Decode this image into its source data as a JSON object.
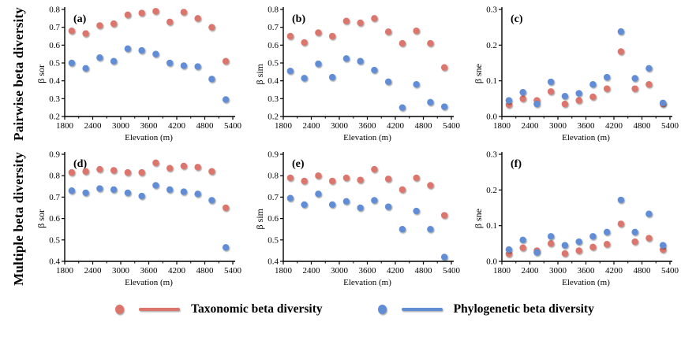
{
  "figure": {
    "background": "#ffffff"
  },
  "row_labels": [
    "Pairwise beta diversity",
    "Multiple beta diversity"
  ],
  "legend": {
    "items": [
      {
        "label": "Taxonomic beta diversity",
        "color": "#dc746c",
        "marker": "dot-and-line"
      },
      {
        "label": "Phylogenetic beta diversity",
        "color": "#608dd5",
        "marker": "dot-and-line"
      }
    ]
  },
  "chart_data": [
    {
      "id": "a",
      "type": "scatter",
      "label": "(a)",
      "row": "Pairwise beta diversity",
      "xlabel": "Elevation (m)",
      "ylabel": "β sor",
      "xlim": [
        1800,
        5400
      ],
      "ylim": [
        0.2,
        0.8
      ],
      "xticks": [
        1800,
        2400,
        3000,
        3600,
        4200,
        4800,
        5400
      ],
      "yticks": [
        0.2,
        0.3,
        0.4,
        0.5,
        0.6,
        0.7,
        0.8
      ],
      "fit": "quadratic",
      "line_style": "solid",
      "grid": false,
      "curve_x_range": [
        1890,
        5280
      ],
      "x": [
        1950,
        2250,
        2550,
        2850,
        3150,
        3450,
        3750,
        4050,
        4350,
        4650,
        4950,
        5250
      ],
      "series": [
        {
          "name": "Taxonomic beta diversity",
          "color": "#dc746c",
          "values": [
            0.68,
            0.665,
            0.71,
            0.72,
            0.77,
            0.78,
            0.79,
            0.73,
            0.785,
            0.75,
            0.7,
            0.51
          ]
        },
        {
          "name": "Phylogenetic beta diversity",
          "color": "#608dd5",
          "values": [
            0.5,
            0.47,
            0.53,
            0.51,
            0.58,
            0.57,
            0.55,
            0.5,
            0.485,
            0.48,
            0.41,
            0.295
          ]
        }
      ]
    },
    {
      "id": "b",
      "type": "scatter",
      "label": "(b)",
      "row": "Pairwise beta diversity",
      "xlabel": "Elevation (m)",
      "ylabel": "β sim",
      "xlim": [
        1800,
        5400
      ],
      "ylim": [
        0.2,
        0.8
      ],
      "xticks": [
        1800,
        2400,
        3000,
        3600,
        4200,
        4800,
        5400
      ],
      "yticks": [
        0.2,
        0.3,
        0.4,
        0.5,
        0.6,
        0.7,
        0.8
      ],
      "fit": "quadratic",
      "line_style": "solid",
      "grid": false,
      "curve_x_range": [
        1890,
        5280
      ],
      "x": [
        1950,
        2250,
        2550,
        2850,
        3150,
        3450,
        3750,
        4050,
        4350,
        4650,
        4950,
        5250
      ],
      "series": [
        {
          "name": "Taxonomic beta diversity",
          "color": "#dc746c",
          "values": [
            0.65,
            0.615,
            0.67,
            0.65,
            0.735,
            0.725,
            0.75,
            0.675,
            0.61,
            0.68,
            0.61,
            0.475
          ]
        },
        {
          "name": "Phylogenetic beta diversity",
          "color": "#608dd5",
          "values": [
            0.455,
            0.415,
            0.495,
            0.42,
            0.525,
            0.51,
            0.46,
            0.395,
            0.25,
            0.38,
            0.28,
            0.255
          ]
        }
      ]
    },
    {
      "id": "c",
      "type": "scatter",
      "label": "(c)",
      "row": "Pairwise beta diversity",
      "xlabel": "Elevation (m)",
      "ylabel": "β sne",
      "xlim": [
        1800,
        5400
      ],
      "ylim": [
        0.0,
        0.3
      ],
      "xticks": [
        1800,
        2400,
        3000,
        3600,
        4200,
        4800,
        5400
      ],
      "yticks": [
        0.0,
        0.1,
        0.2,
        0.3
      ],
      "fit": "linear",
      "line_style": "dashed",
      "grid": false,
      "curve_x_range": [
        1880,
        5200
      ],
      "x": [
        1950,
        2250,
        2550,
        2850,
        3150,
        3450,
        3750,
        4050,
        4350,
        4650,
        4950,
        5250
      ],
      "series": [
        {
          "name": "Taxonomic beta diversity",
          "color": "#dc746c",
          "values": [
            0.033,
            0.05,
            0.045,
            0.07,
            0.035,
            0.045,
            0.055,
            0.078,
            0.182,
            0.078,
            0.09,
            0.035
          ]
        },
        {
          "name": "Phylogenetic beta diversity",
          "color": "#608dd5",
          "values": [
            0.045,
            0.068,
            0.035,
            0.097,
            0.057,
            0.065,
            0.09,
            0.11,
            0.238,
            0.107,
            0.135,
            0.038
          ]
        }
      ]
    },
    {
      "id": "d",
      "type": "scatter",
      "label": "(d)",
      "row": "Multiple beta diversity",
      "xlabel": "Elevation (m)",
      "ylabel": "β sor",
      "xlim": [
        1800,
        5400
      ],
      "ylim": [
        0.4,
        0.9
      ],
      "xticks": [
        1800,
        2400,
        3000,
        3600,
        4200,
        4800,
        5400
      ],
      "yticks": [
        0.4,
        0.5,
        0.6,
        0.7,
        0.8,
        0.9
      ],
      "fit": "quadratic",
      "line_style": "solid",
      "grid": false,
      "curve_x_range": [
        1890,
        5280
      ],
      "x": [
        1950,
        2250,
        2550,
        2850,
        3150,
        3450,
        3750,
        4050,
        4350,
        4650,
        4950,
        5250
      ],
      "series": [
        {
          "name": "Taxonomic beta diversity",
          "color": "#dc746c",
          "values": [
            0.815,
            0.82,
            0.83,
            0.825,
            0.815,
            0.815,
            0.86,
            0.835,
            0.845,
            0.84,
            0.82,
            0.65
          ]
        },
        {
          "name": "Phylogenetic beta diversity",
          "color": "#608dd5",
          "values": [
            0.73,
            0.72,
            0.74,
            0.735,
            0.72,
            0.705,
            0.755,
            0.735,
            0.725,
            0.715,
            0.685,
            0.465
          ]
        }
      ]
    },
    {
      "id": "e",
      "type": "scatter",
      "label": "(e)",
      "row": "Multiple beta diversity",
      "xlabel": "Elevation (m)",
      "ylabel": "β sim",
      "xlim": [
        1800,
        5400
      ],
      "ylim": [
        0.4,
        0.9
      ],
      "xticks": [
        1800,
        2400,
        3000,
        3600,
        4200,
        4800,
        5400
      ],
      "yticks": [
        0.4,
        0.5,
        0.6,
        0.7,
        0.8,
        0.9
      ],
      "fit": "quadratic",
      "line_style": "solid",
      "grid": false,
      "curve_x_range": [
        1890,
        5280
      ],
      "x": [
        1950,
        2250,
        2550,
        2850,
        3150,
        3450,
        3750,
        4050,
        4350,
        4650,
        4950,
        5250
      ],
      "series": [
        {
          "name": "Taxonomic beta diversity",
          "color": "#dc746c",
          "values": [
            0.79,
            0.775,
            0.8,
            0.775,
            0.79,
            0.78,
            0.83,
            0.785,
            0.735,
            0.79,
            0.755,
            0.615
          ]
        },
        {
          "name": "Phylogenetic beta diversity",
          "color": "#608dd5",
          "values": [
            0.695,
            0.665,
            0.715,
            0.665,
            0.68,
            0.65,
            0.685,
            0.655,
            0.55,
            0.635,
            0.55,
            0.42
          ]
        }
      ]
    },
    {
      "id": "f",
      "type": "scatter",
      "label": "(f)",
      "row": "Multiple beta diversity",
      "xlabel": "Elevation (m)",
      "ylabel": "β sne",
      "xlim": [
        1800,
        5400
      ],
      "ylim": [
        0.0,
        0.3
      ],
      "xticks": [
        1800,
        2400,
        3000,
        3600,
        4200,
        4800,
        5400
      ],
      "yticks": [
        0.0,
        0.1,
        0.2,
        0.3
      ],
      "fit": "linear",
      "line_style": "dashed",
      "grid": false,
      "curve_x_range": [
        1880,
        5200
      ],
      "x": [
        1950,
        2250,
        2550,
        2850,
        3150,
        3450,
        3750,
        4050,
        4350,
        4650,
        4950,
        5250
      ],
      "series": [
        {
          "name": "Taxonomic beta diversity",
          "color": "#dc746c",
          "values": [
            0.021,
            0.038,
            0.03,
            0.05,
            0.022,
            0.03,
            0.04,
            0.048,
            0.105,
            0.055,
            0.065,
            0.033
          ]
        },
        {
          "name": "Phylogenetic beta diversity",
          "color": "#608dd5",
          "values": [
            0.033,
            0.06,
            0.025,
            0.07,
            0.045,
            0.055,
            0.07,
            0.082,
            0.172,
            0.082,
            0.133,
            0.045
          ]
        }
      ]
    }
  ]
}
